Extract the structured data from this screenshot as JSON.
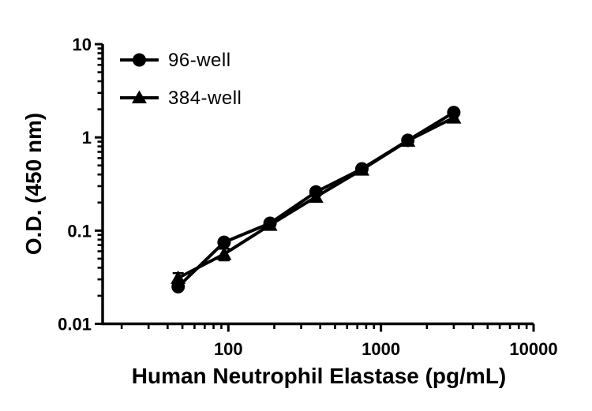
{
  "chart_data": {
    "type": "line",
    "title": "",
    "xlabel": "Human Neutrophil Elastase (pg/mL)",
    "ylabel": "O.D. (450 nm)",
    "x_scale": "log",
    "y_scale": "log",
    "xlim": [
      15,
      10000
    ],
    "ylim": [
      0.01,
      10
    ],
    "x_ticks": [
      100,
      1000,
      10000
    ],
    "x_tick_labels": [
      "100",
      "1000",
      "10000"
    ],
    "y_ticks": [
      0.01,
      0.1,
      1,
      10
    ],
    "y_tick_labels": [
      "0.01",
      "0.1",
      "1",
      "10"
    ],
    "grid": false,
    "legend_position": "top-left",
    "color": "#000000",
    "background": "#ffffff",
    "x": [
      46.88,
      93.75,
      187.5,
      375,
      750,
      1500,
      3000
    ],
    "series": [
      {
        "name": "96-well",
        "marker": "circle",
        "values": [
          0.025,
          0.075,
          0.12,
          0.26,
          0.46,
          0.93,
          1.85
        ],
        "error": [
          0,
          0,
          0,
          0,
          0,
          0,
          0
        ]
      },
      {
        "name": "384-well",
        "marker": "triangle",
        "values": [
          0.031,
          0.056,
          0.115,
          0.23,
          0.45,
          0.92,
          1.63
        ],
        "error": [
          0.004,
          0.008,
          0,
          0,
          0,
          0,
          0
        ]
      }
    ]
  }
}
